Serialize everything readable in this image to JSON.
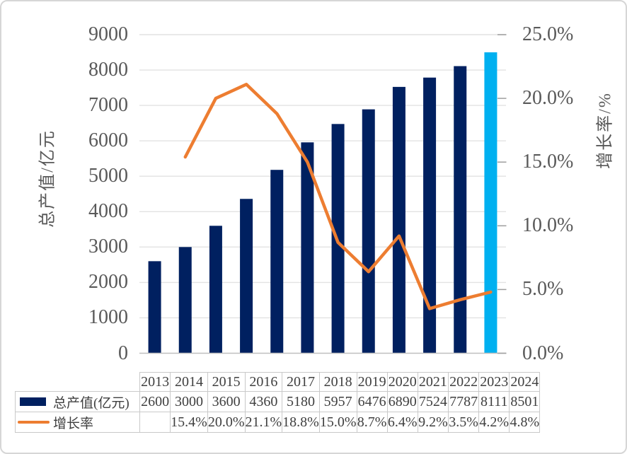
{
  "chart_data": {
    "type": "combo-bar-line",
    "categories": [
      "2013",
      "2014",
      "2015",
      "2016",
      "2017",
      "2018",
      "2019",
      "2020",
      "2021",
      "2022",
      "2023",
      "2024"
    ],
    "series": [
      {
        "name": "总产值(亿元)",
        "type": "bar",
        "axis": "left",
        "values": [
          2600,
          3000,
          3600,
          4360,
          5180,
          5957,
          6476,
          6890,
          7524,
          7787,
          8111,
          8501
        ],
        "color": "#002060",
        "last_bar_color": "#00B0F0"
      },
      {
        "name": "增长率",
        "type": "line",
        "axis": "right",
        "values": [
          null,
          15.4,
          20.0,
          21.1,
          18.8,
          15.0,
          8.7,
          6.4,
          9.2,
          3.5,
          4.2,
          4.8
        ],
        "color": "#ED7D31"
      }
    ],
    "left_axis": {
      "title": "总产值/亿元",
      "min": 0,
      "max": 9000,
      "step": 1000,
      "labels": [
        "0",
        "1000",
        "2000",
        "3000",
        "4000",
        "5000",
        "6000",
        "7000",
        "8000",
        "9000"
      ]
    },
    "right_axis": {
      "title": "增长率/%",
      "min": 0,
      "max": 25,
      "step": 5,
      "labels": [
        "0.0%",
        "5.0%",
        "10.0%",
        "15.0%",
        "20.0%",
        "25.0%"
      ]
    },
    "grid": true,
    "legend_position": "table-left"
  },
  "table": {
    "years": [
      "2013",
      "2014",
      "2015",
      "2016",
      "2017",
      "2018",
      "2019",
      "2020",
      "2021",
      "2022",
      "2023",
      "2024"
    ],
    "rows": [
      {
        "label": "总产值(亿元)",
        "swatch": "bar",
        "cells": [
          "2600",
          "3000",
          "3600",
          "4360",
          "5180",
          "5957",
          "6476",
          "6890",
          "7524",
          "7787",
          "8111",
          "8501"
        ]
      },
      {
        "label": "增长率",
        "swatch": "line",
        "cells": [
          "",
          "15.4%",
          "20.0%",
          "21.1%",
          "18.8%",
          "15.0%",
          "8.7%",
          "6.4%",
          "9.2%",
          "3.5%",
          "4.2%",
          "4.8%"
        ]
      }
    ]
  },
  "colors": {
    "bar": "#002060",
    "bar_highlight": "#00B0F0",
    "line": "#ED7D31",
    "grid": "#E2E2E2",
    "axis_line": "#BFBFBF",
    "right_tick": "#9E9E9E",
    "axis_text": "#595959",
    "table_text": "#3F3F3F",
    "table_border": "#C9C9C9",
    "frame_border": "#D6D6D6"
  }
}
